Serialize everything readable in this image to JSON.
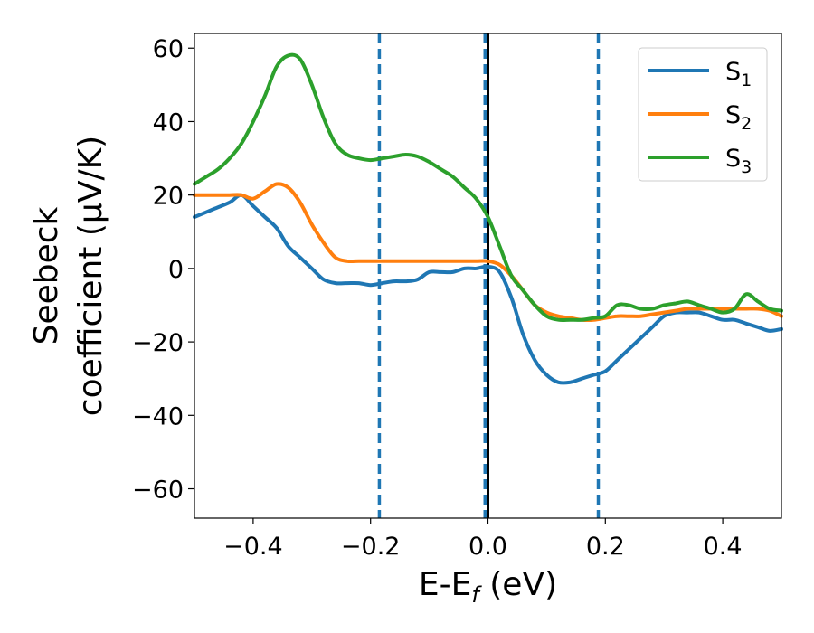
{
  "chart_data": {
    "type": "line",
    "xlabel_parts": {
      "base": "E-E",
      "sub": "f",
      "tail": " (eV)"
    },
    "ylabel_lines": [
      "Seebeck",
      "coefficient  (μV/K)"
    ],
    "xlim": [
      -0.5,
      0.5
    ],
    "ylim": [
      -68,
      64
    ],
    "x_ticks": [
      -0.4,
      -0.2,
      0.0,
      0.2,
      0.4
    ],
    "x_tick_labels": [
      "−0.4",
      "−0.2",
      "0.0",
      "0.2",
      "0.4"
    ],
    "y_ticks": [
      60,
      40,
      20,
      0,
      -20,
      -40,
      -60
    ],
    "y_tick_labels": [
      "60",
      "40",
      "20",
      "0",
      "−20",
      "−40",
      "−60"
    ],
    "grid": false,
    "legend_position": "top-right",
    "vlines": [
      {
        "x": -0.185,
        "style": "dashed",
        "color": "#1f77b4"
      },
      {
        "x": -0.005,
        "style": "dashed",
        "color": "#1f77b4"
      },
      {
        "x": 0.0,
        "style": "solid",
        "color": "#000000"
      },
      {
        "x": 0.188,
        "style": "dashed",
        "color": "#1f77b4"
      }
    ],
    "series": [
      {
        "name": "S",
        "sub": "1",
        "color": "#1f77b4",
        "x": [
          -0.5,
          -0.47,
          -0.44,
          -0.42,
          -0.4,
          -0.38,
          -0.36,
          -0.34,
          -0.32,
          -0.3,
          -0.28,
          -0.26,
          -0.24,
          -0.22,
          -0.2,
          -0.18,
          -0.16,
          -0.14,
          -0.12,
          -0.1,
          -0.08,
          -0.06,
          -0.04,
          -0.02,
          0.0,
          0.02,
          0.04,
          0.06,
          0.08,
          0.1,
          0.12,
          0.14,
          0.16,
          0.18,
          0.2,
          0.22,
          0.24,
          0.26,
          0.28,
          0.3,
          0.32,
          0.34,
          0.36,
          0.38,
          0.4,
          0.42,
          0.44,
          0.46,
          0.48,
          0.5
        ],
        "y": [
          14,
          16,
          18,
          20,
          17,
          14,
          11,
          6,
          3,
          0,
          -3,
          -4,
          -4,
          -4,
          -4.5,
          -4,
          -3.5,
          -3.5,
          -3,
          -1,
          -1,
          -1,
          0,
          0,
          0.5,
          -1,
          -8,
          -18,
          -25,
          -29,
          -31,
          -31,
          -30,
          -29,
          -28,
          -25,
          -22,
          -19,
          -16,
          -13,
          -12,
          -12,
          -12,
          -13,
          -14,
          -14,
          -15,
          -16,
          -17,
          -16.5
        ]
      },
      {
        "name": "S",
        "sub": "2",
        "color": "#ff7f0e",
        "x": [
          -0.5,
          -0.48,
          -0.46,
          -0.44,
          -0.42,
          -0.4,
          -0.38,
          -0.36,
          -0.34,
          -0.32,
          -0.3,
          -0.28,
          -0.26,
          -0.24,
          -0.22,
          -0.2,
          -0.18,
          -0.16,
          -0.14,
          -0.12,
          -0.1,
          -0.08,
          -0.06,
          -0.04,
          -0.02,
          0.0,
          0.02,
          0.04,
          0.06,
          0.08,
          0.1,
          0.12,
          0.14,
          0.16,
          0.18,
          0.2,
          0.22,
          0.24,
          0.26,
          0.28,
          0.3,
          0.32,
          0.34,
          0.36,
          0.38,
          0.4,
          0.42,
          0.44,
          0.46,
          0.48,
          0.5
        ],
        "y": [
          20,
          20,
          20,
          20,
          20,
          19,
          21,
          23,
          22,
          18,
          12,
          7,
          3,
          2,
          2,
          2,
          2,
          2,
          2,
          2,
          2,
          2,
          2,
          2,
          2,
          2,
          1,
          -2,
          -6,
          -10,
          -12,
          -13,
          -13.5,
          -14,
          -14,
          -13.5,
          -13,
          -13,
          -13,
          -12.5,
          -12,
          -11.5,
          -11,
          -11,
          -11,
          -11,
          -11,
          -11,
          -11,
          -11.5,
          -13
        ]
      },
      {
        "name": "S",
        "sub": "3",
        "color": "#2ca02c",
        "x": [
          -0.5,
          -0.48,
          -0.46,
          -0.44,
          -0.42,
          -0.4,
          -0.38,
          -0.36,
          -0.34,
          -0.32,
          -0.3,
          -0.28,
          -0.26,
          -0.24,
          -0.22,
          -0.2,
          -0.18,
          -0.16,
          -0.14,
          -0.12,
          -0.1,
          -0.08,
          -0.06,
          -0.04,
          -0.02,
          0.0,
          0.02,
          0.04,
          0.06,
          0.08,
          0.1,
          0.12,
          0.14,
          0.16,
          0.18,
          0.2,
          0.22,
          0.24,
          0.26,
          0.28,
          0.3,
          0.32,
          0.34,
          0.36,
          0.38,
          0.4,
          0.42,
          0.44,
          0.46,
          0.48,
          0.5
        ],
        "y": [
          23,
          25,
          27,
          30,
          34,
          40,
          47,
          55,
          58,
          57,
          50,
          41,
          34,
          31,
          30,
          29.5,
          30,
          30.5,
          31,
          30.5,
          29,
          27,
          25,
          22,
          19,
          14,
          6,
          -2,
          -6,
          -10,
          -13,
          -14,
          -14,
          -14,
          -13.5,
          -13,
          -10,
          -10,
          -11,
          -11,
          -10,
          -9.5,
          -9,
          -10,
          -11,
          -12,
          -11,
          -7,
          -9,
          -11,
          -11.5
        ]
      }
    ]
  }
}
